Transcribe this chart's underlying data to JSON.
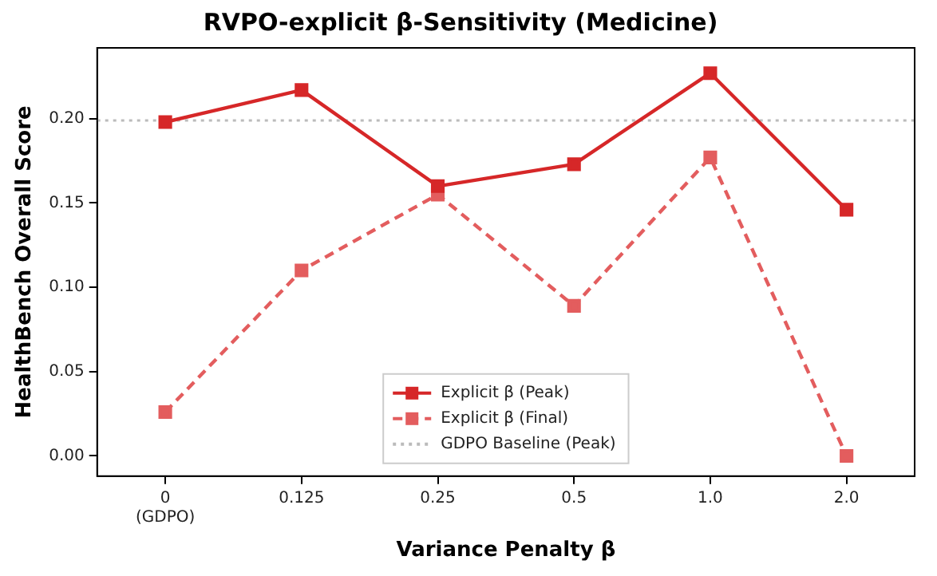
{
  "chart_data": {
    "type": "line",
    "title": "RVPO-explicit β-Sensitivity (Medicine)",
    "xlabel": "Variance Penalty β",
    "ylabel": "HealthBench Overall Score",
    "categories": [
      "0\n(GDPO)",
      "0.125",
      "0.25",
      "0.5",
      "1.0",
      "2.0"
    ],
    "series": [
      {
        "name": "Explicit β (Peak)",
        "color": "#d62728",
        "values": [
          0.198,
          0.217,
          0.16,
          0.173,
          0.227,
          0.146
        ],
        "line_style": "solid"
      },
      {
        "name": "Explicit β (Final)",
        "color": "#e35d5e",
        "values": [
          0.026,
          0.11,
          0.155,
          0.089,
          0.177,
          0.0
        ],
        "line_style": "dashed"
      }
    ],
    "ref_lines": [
      {
        "axis": "y",
        "value": 0.199,
        "label": "GDPO Baseline (Peak)",
        "color": "#bbbbbb",
        "line_style": "dotted"
      }
    ],
    "ylim": [
      -0.012,
      0.242
    ],
    "yticks": [
      {
        "value": 0,
        "label": "0.00"
      },
      {
        "value": 0.05,
        "label": "0.05"
      },
      {
        "value": 0.1,
        "label": "0.10"
      },
      {
        "value": 0.15,
        "label": "0.15"
      },
      {
        "value": 0.2,
        "label": "0.20"
      }
    ],
    "marker": "square",
    "grid": false,
    "legend": "bottom center"
  }
}
